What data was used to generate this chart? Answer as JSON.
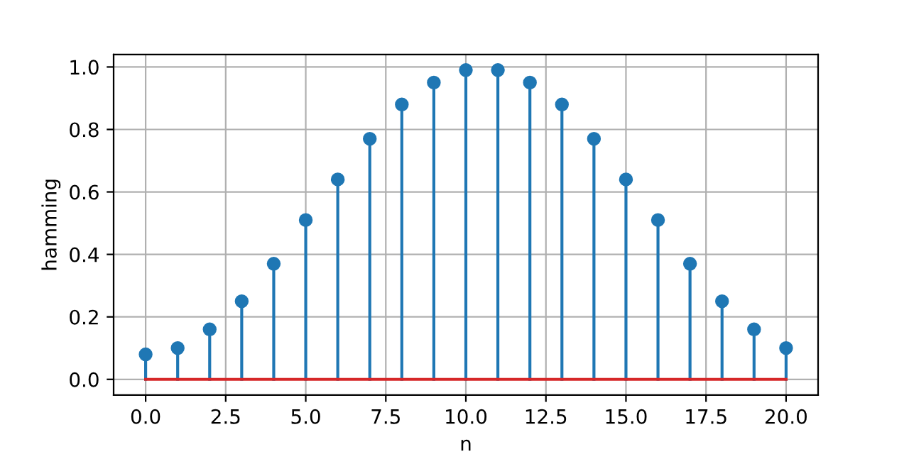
{
  "chart_data": {
    "type": "lollipop",
    "xlabel": "n",
    "ylabel": "hamming",
    "x": [
      0,
      1,
      2,
      3,
      4,
      5,
      6,
      7,
      8,
      9,
      10,
      11,
      12,
      13,
      14,
      15,
      16,
      17,
      18,
      19,
      20
    ],
    "series": [
      {
        "color": "#1f77b4",
        "values": [
          0.08,
          0.1,
          0.16,
          0.25,
          0.37,
          0.51,
          0.64,
          0.77,
          0.88,
          0.95,
          0.99,
          0.99,
          0.95,
          0.88,
          0.77,
          0.64,
          0.51,
          0.37,
          0.25,
          0.16,
          0.1
        ]
      }
    ],
    "ref_lines": [
      {
        "axis": "y",
        "value": 0,
        "label": null,
        "color": "#d62728",
        "line_style": "solid"
      }
    ],
    "xlim": [
      -1,
      21
    ],
    "xticks": [
      {
        "value": 0,
        "label": "0.0"
      },
      {
        "value": 2.5,
        "label": "2.5"
      },
      {
        "value": 5,
        "label": "5.0"
      },
      {
        "value": 7.5,
        "label": "7.5"
      },
      {
        "value": 10,
        "label": "10.0"
      },
      {
        "value": 12.5,
        "label": "12.5"
      },
      {
        "value": 15,
        "label": "15.0"
      },
      {
        "value": 17.5,
        "label": "17.5"
      },
      {
        "value": 20,
        "label": "20.0"
      }
    ],
    "ylim": [
      -0.05,
      1.04
    ],
    "yticks": [
      {
        "value": 0,
        "label": "0.0"
      },
      {
        "value": 0.2,
        "label": "0.2"
      },
      {
        "value": 0.4,
        "label": "0.4"
      },
      {
        "value": 0.6,
        "label": "0.6"
      },
      {
        "value": 0.8,
        "label": "0.8"
      },
      {
        "value": 1.0,
        "label": "1.0"
      }
    ],
    "grid": true,
    "marker": "circle"
  }
}
